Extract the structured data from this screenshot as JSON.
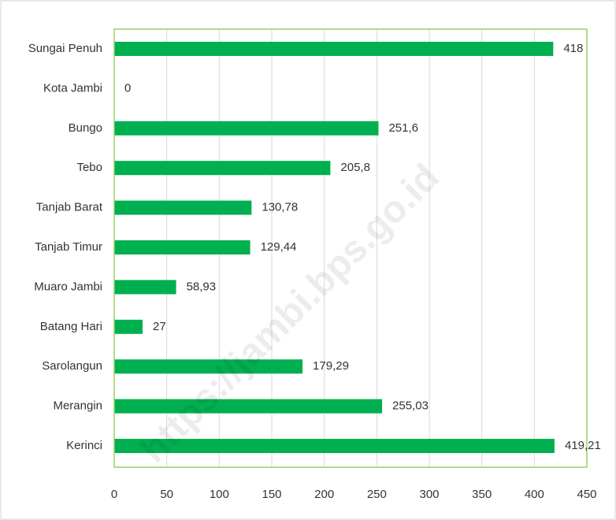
{
  "chart_data": {
    "type": "barh",
    "categories": [
      "Sungai Penuh",
      "Kota Jambi",
      "Bungo",
      "Tebo",
      "Tanjab Barat",
      "Tanjab Timur",
      "Muaro Jambi",
      "Batang Hari",
      "Sarolangun",
      "Merangin",
      "Kerinci"
    ],
    "values": [
      418,
      0,
      251.6,
      205.8,
      130.78,
      129.44,
      58.93,
      27,
      179.29,
      255.03,
      419.21
    ],
    "value_labels": [
      "418",
      "0",
      "251,6",
      "205,8",
      "130,78",
      "129,44",
      "58,93",
      "27",
      "179,29",
      "255,03",
      "419,21"
    ],
    "color": "#00b050",
    "xlim": [
      0,
      450
    ],
    "xticks": [
      0,
      50,
      100,
      150,
      200,
      250,
      300,
      350,
      400,
      450
    ],
    "grid": true,
    "watermark": "https://jambi.bps.go.id"
  }
}
